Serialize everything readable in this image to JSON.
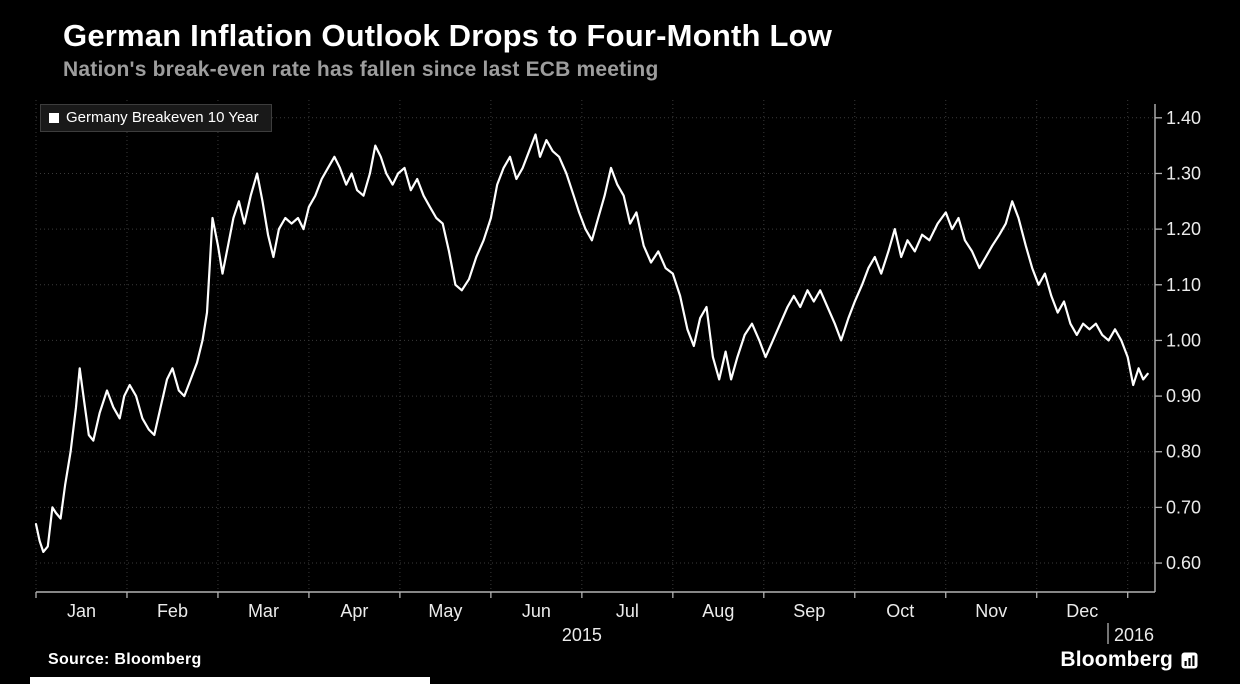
{
  "header": {
    "title": "German Inflation Outlook Drops to Four-Month Low",
    "subtitle": "Nation's break-even rate has fallen since last ECB meeting"
  },
  "legend": {
    "label": "Germany Breakeven 10 Year",
    "swatch_color": "#ffffff"
  },
  "footer": {
    "source": "Source: Bloomberg",
    "brand": "Bloomberg"
  },
  "colors": {
    "background": "#000000",
    "line": "#ffffff",
    "grid": "#3a3a3a",
    "axis": "#b3b3b3",
    "tick_label": "#ebebeb",
    "subtitle": "#9d9d9d"
  },
  "chart_data": {
    "type": "line",
    "title": "German Inflation Outlook Drops to Four-Month Low",
    "subtitle": "Nation's break-even rate has fallen since last ECB meeting",
    "xlabel": "",
    "ylabel": "",
    "x_unit": "months since 2015-01-01",
    "x_tick_labels": [
      "Jan",
      "Feb",
      "Mar",
      "Apr",
      "May",
      "Jun",
      "Jul",
      "Aug",
      "Sep",
      "Oct",
      "Nov",
      "Dec"
    ],
    "x_year_labels": [
      "2015",
      "2016"
    ],
    "y_ticks": [
      0.6,
      0.7,
      0.8,
      0.9,
      1.0,
      1.1,
      1.2,
      1.3,
      1.4
    ],
    "ylim": [
      0.548,
      1.432
    ],
    "xlim": [
      0,
      12.3
    ],
    "grid": true,
    "legend_position": "top-left",
    "series": [
      {
        "name": "Germany Breakeven 10 Year",
        "color": "#ffffff",
        "points": [
          [
            0.0,
            0.67
          ],
          [
            0.04,
            0.64
          ],
          [
            0.08,
            0.62
          ],
          [
            0.13,
            0.63
          ],
          [
            0.18,
            0.7
          ],
          [
            0.22,
            0.69
          ],
          [
            0.27,
            0.68
          ],
          [
            0.32,
            0.74
          ],
          [
            0.38,
            0.8
          ],
          [
            0.44,
            0.88
          ],
          [
            0.48,
            0.95
          ],
          [
            0.53,
            0.89
          ],
          [
            0.58,
            0.83
          ],
          [
            0.63,
            0.82
          ],
          [
            0.7,
            0.87
          ],
          [
            0.78,
            0.91
          ],
          [
            0.85,
            0.88
          ],
          [
            0.92,
            0.86
          ],
          [
            0.97,
            0.9
          ],
          [
            1.03,
            0.92
          ],
          [
            1.1,
            0.9
          ],
          [
            1.17,
            0.86
          ],
          [
            1.24,
            0.84
          ],
          [
            1.3,
            0.83
          ],
          [
            1.37,
            0.88
          ],
          [
            1.44,
            0.93
          ],
          [
            1.5,
            0.95
          ],
          [
            1.57,
            0.91
          ],
          [
            1.63,
            0.9
          ],
          [
            1.7,
            0.93
          ],
          [
            1.77,
            0.96
          ],
          [
            1.83,
            1.0
          ],
          [
            1.88,
            1.05
          ],
          [
            1.94,
            1.22
          ],
          [
            2.0,
            1.17
          ],
          [
            2.05,
            1.12
          ],
          [
            2.11,
            1.17
          ],
          [
            2.17,
            1.22
          ],
          [
            2.23,
            1.25
          ],
          [
            2.29,
            1.21
          ],
          [
            2.36,
            1.26
          ],
          [
            2.43,
            1.3
          ],
          [
            2.49,
            1.25
          ],
          [
            2.55,
            1.19
          ],
          [
            2.61,
            1.15
          ],
          [
            2.67,
            1.2
          ],
          [
            2.74,
            1.22
          ],
          [
            2.81,
            1.21
          ],
          [
            2.88,
            1.22
          ],
          [
            2.94,
            1.2
          ],
          [
            3.0,
            1.24
          ],
          [
            3.07,
            1.26
          ],
          [
            3.14,
            1.29
          ],
          [
            3.21,
            1.31
          ],
          [
            3.28,
            1.33
          ],
          [
            3.34,
            1.31
          ],
          [
            3.41,
            1.28
          ],
          [
            3.47,
            1.3
          ],
          [
            3.53,
            1.27
          ],
          [
            3.6,
            1.26
          ],
          [
            3.67,
            1.3
          ],
          [
            3.73,
            1.35
          ],
          [
            3.79,
            1.33
          ],
          [
            3.85,
            1.3
          ],
          [
            3.92,
            1.28
          ],
          [
            3.98,
            1.3
          ],
          [
            4.05,
            1.31
          ],
          [
            4.12,
            1.27
          ],
          [
            4.19,
            1.29
          ],
          [
            4.26,
            1.26
          ],
          [
            4.33,
            1.24
          ],
          [
            4.4,
            1.22
          ],
          [
            4.47,
            1.21
          ],
          [
            4.54,
            1.16
          ],
          [
            4.61,
            1.1
          ],
          [
            4.68,
            1.09
          ],
          [
            4.76,
            1.11
          ],
          [
            4.84,
            1.15
          ],
          [
            4.92,
            1.18
          ],
          [
            5.0,
            1.22
          ],
          [
            5.07,
            1.28
          ],
          [
            5.14,
            1.31
          ],
          [
            5.21,
            1.33
          ],
          [
            5.28,
            1.29
          ],
          [
            5.35,
            1.31
          ],
          [
            5.42,
            1.34
          ],
          [
            5.49,
            1.37
          ],
          [
            5.54,
            1.33
          ],
          [
            5.61,
            1.36
          ],
          [
            5.68,
            1.34
          ],
          [
            5.75,
            1.33
          ],
          [
            5.83,
            1.3
          ],
          [
            5.91,
            1.26
          ],
          [
            5.97,
            1.23
          ],
          [
            6.04,
            1.2
          ],
          [
            6.11,
            1.18
          ],
          [
            6.18,
            1.22
          ],
          [
            6.25,
            1.26
          ],
          [
            6.32,
            1.31
          ],
          [
            6.39,
            1.28
          ],
          [
            6.46,
            1.26
          ],
          [
            6.53,
            1.21
          ],
          [
            6.6,
            1.23
          ],
          [
            6.68,
            1.17
          ],
          [
            6.76,
            1.14
          ],
          [
            6.84,
            1.16
          ],
          [
            6.92,
            1.13
          ],
          [
            7.0,
            1.12
          ],
          [
            7.08,
            1.08
          ],
          [
            7.16,
            1.02
          ],
          [
            7.23,
            0.99
          ],
          [
            7.3,
            1.04
          ],
          [
            7.37,
            1.06
          ],
          [
            7.44,
            0.97
          ],
          [
            7.51,
            0.93
          ],
          [
            7.58,
            0.98
          ],
          [
            7.64,
            0.93
          ],
          [
            7.71,
            0.97
          ],
          [
            7.79,
            1.01
          ],
          [
            7.87,
            1.03
          ],
          [
            7.95,
            1.0
          ],
          [
            8.02,
            0.97
          ],
          [
            8.1,
            1.0
          ],
          [
            8.18,
            1.03
          ],
          [
            8.26,
            1.06
          ],
          [
            8.33,
            1.08
          ],
          [
            8.4,
            1.06
          ],
          [
            8.48,
            1.09
          ],
          [
            8.55,
            1.07
          ],
          [
            8.62,
            1.09
          ],
          [
            8.7,
            1.06
          ],
          [
            8.78,
            1.03
          ],
          [
            8.85,
            1.0
          ],
          [
            8.93,
            1.04
          ],
          [
            9.0,
            1.07
          ],
          [
            9.08,
            1.1
          ],
          [
            9.15,
            1.13
          ],
          [
            9.22,
            1.15
          ],
          [
            9.29,
            1.12
          ],
          [
            9.37,
            1.16
          ],
          [
            9.44,
            1.2
          ],
          [
            9.51,
            1.15
          ],
          [
            9.58,
            1.18
          ],
          [
            9.66,
            1.16
          ],
          [
            9.74,
            1.19
          ],
          [
            9.82,
            1.18
          ],
          [
            9.91,
            1.21
          ],
          [
            10.0,
            1.23
          ],
          [
            10.07,
            1.2
          ],
          [
            10.14,
            1.22
          ],
          [
            10.21,
            1.18
          ],
          [
            10.29,
            1.16
          ],
          [
            10.37,
            1.13
          ],
          [
            10.44,
            1.15
          ],
          [
            10.51,
            1.17
          ],
          [
            10.59,
            1.19
          ],
          [
            10.66,
            1.21
          ],
          [
            10.73,
            1.25
          ],
          [
            10.8,
            1.22
          ],
          [
            10.88,
            1.17
          ],
          [
            10.95,
            1.13
          ],
          [
            11.02,
            1.1
          ],
          [
            11.09,
            1.12
          ],
          [
            11.16,
            1.08
          ],
          [
            11.23,
            1.05
          ],
          [
            11.3,
            1.07
          ],
          [
            11.37,
            1.03
          ],
          [
            11.44,
            1.01
          ],
          [
            11.51,
            1.03
          ],
          [
            11.58,
            1.02
          ],
          [
            11.65,
            1.03
          ],
          [
            11.72,
            1.01
          ],
          [
            11.79,
            1.0
          ],
          [
            11.86,
            1.02
          ],
          [
            11.93,
            1.0
          ],
          [
            12.0,
            0.97
          ],
          [
            12.06,
            0.92
          ],
          [
            12.12,
            0.95
          ],
          [
            12.17,
            0.93
          ],
          [
            12.22,
            0.94
          ]
        ]
      }
    ]
  }
}
